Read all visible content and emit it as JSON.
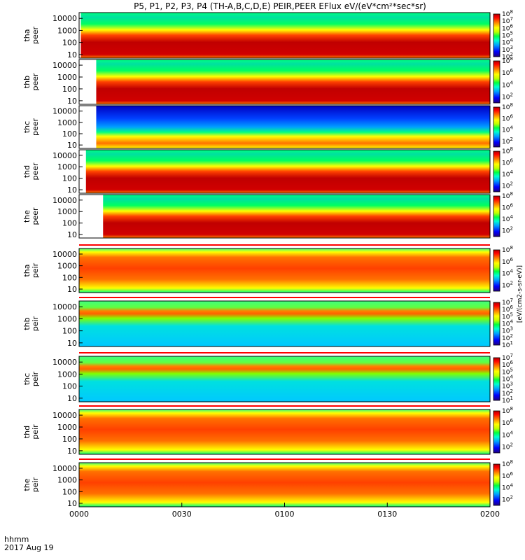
{
  "chart_data": {
    "type": "heatmap",
    "title": "P5, P1, P2, P3, P4 (TH-A,B,C,D,E) PEIR,PEER EFlux eV/(eV*cm²*sec*sr)",
    "time_ticks": [
      "0000",
      "0030",
      "0100",
      "0130",
      "0200"
    ],
    "time_label_line1": "hhmm",
    "time_label_line2": "2017 Aug 19",
    "xlim_minutes": [
      0,
      120
    ],
    "y_scale": "log",
    "ylim_eV": [
      5,
      30000
    ],
    "y_ticks": [
      "10000",
      "1000",
      "100",
      "10"
    ],
    "colorbar_unit": "[eV/(cm2-s-sr-eV)]",
    "colorscale": [
      "#20007f",
      "#0000ff",
      "#00a0ff",
      "#00ffd0",
      "#00ff40",
      "#c0ff00",
      "#ffff00",
      "#ff8000",
      "#ff0000",
      "#b00000"
    ],
    "panels": [
      {
        "label1": "tha",
        "label2": "peer",
        "data_start_min": 0.5,
        "cb_exps": [
          "8",
          "7",
          "6",
          "5",
          "4",
          "3",
          "2"
        ],
        "cb_range": [
          2,
          8
        ]
      },
      {
        "label1": "thb",
        "label2": "peer",
        "data_start_min": 5,
        "cb_exps": [
          "8",
          "6",
          "4",
          "2"
        ],
        "cb_range": [
          1,
          8
        ]
      },
      {
        "label1": "thc",
        "label2": "peer",
        "data_start_min": 5,
        "cb_exps": [
          "8",
          "6",
          "4",
          "2"
        ],
        "cb_range": [
          1,
          8
        ]
      },
      {
        "label1": "thd",
        "label2": "peer",
        "data_start_min": 2,
        "cb_exps": [
          "8",
          "6",
          "4",
          "2"
        ],
        "cb_range": [
          1,
          8
        ]
      },
      {
        "label1": "the",
        "label2": "peer",
        "data_start_min": 7,
        "cb_exps": [
          "8",
          "6",
          "4",
          "2"
        ],
        "cb_range": [
          1,
          8
        ]
      },
      {
        "label1": "tha",
        "label2": "peir",
        "data_start_min": 0,
        "cb_exps": [
          "8",
          "6",
          "4",
          "2"
        ],
        "cb_range": [
          1,
          8
        ]
      },
      {
        "label1": "thb",
        "label2": "peir",
        "data_start_min": 0,
        "cb_exps": [
          "7",
          "6",
          "5",
          "4",
          "3",
          "2",
          "1"
        ],
        "cb_range": [
          1,
          7
        ]
      },
      {
        "label1": "thc",
        "label2": "peir",
        "data_start_min": 0,
        "cb_exps": [
          "7",
          "6",
          "5",
          "4",
          "3",
          "2",
          "1"
        ],
        "cb_range": [
          1,
          7
        ]
      },
      {
        "label1": "thd",
        "label2": "peir",
        "data_start_min": 0,
        "cb_exps": [
          "8",
          "6",
          "4",
          "2"
        ],
        "cb_range": [
          1,
          8
        ]
      },
      {
        "label1": "the",
        "label2": "peir",
        "data_start_min": 0,
        "cb_exps": [
          "8",
          "6",
          "4",
          "2"
        ],
        "cb_range": [
          1,
          8
        ]
      }
    ]
  }
}
